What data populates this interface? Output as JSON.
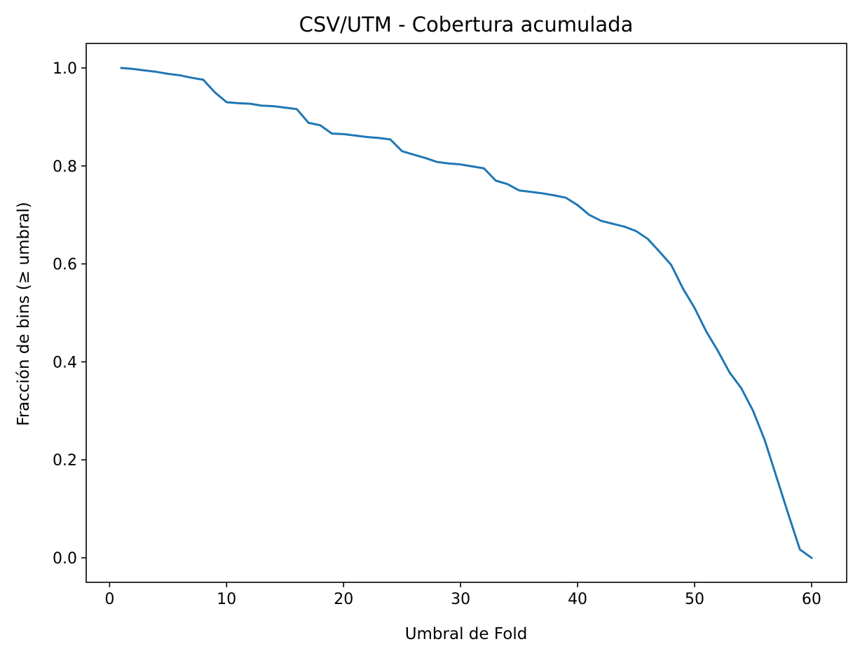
{
  "chart_data": {
    "type": "line",
    "title": "CSV/UTM - Cobertura acumulada",
    "xlabel": "Umbral de Fold",
    "ylabel": "Fracción de bins (≥ umbral)",
    "xlim": [
      -2,
      63
    ],
    "ylim": [
      -0.05,
      1.05
    ],
    "xticks": [
      0,
      10,
      20,
      30,
      40,
      50,
      60
    ],
    "xtick_labels": [
      "0",
      "10",
      "20",
      "30",
      "40",
      "50",
      "60"
    ],
    "yticks": [
      0.0,
      0.2,
      0.4,
      0.6,
      0.8,
      1.0
    ],
    "ytick_labels": [
      "0.0",
      "0.2",
      "0.4",
      "0.6",
      "0.8",
      "1.0"
    ],
    "grid": false,
    "series": [
      {
        "color": "#1f77b4",
        "x": [
          1,
          2,
          3,
          4,
          5,
          6,
          7,
          8,
          9,
          10,
          11,
          12,
          13,
          14,
          15,
          16,
          17,
          18,
          19,
          20,
          21,
          22,
          23,
          24,
          25,
          26,
          27,
          28,
          29,
          30,
          31,
          32,
          33,
          34,
          35,
          36,
          37,
          38,
          39,
          40,
          41,
          42,
          43,
          44,
          45,
          46,
          47,
          48,
          49,
          50,
          51,
          52,
          53,
          54,
          55,
          56,
          57,
          58,
          59,
          60
        ],
        "y": [
          1.0,
          0.998,
          0.995,
          0.992,
          0.988,
          0.985,
          0.98,
          0.976,
          0.95,
          0.93,
          0.928,
          0.927,
          0.923,
          0.922,
          0.919,
          0.916,
          0.888,
          0.883,
          0.866,
          0.865,
          0.862,
          0.859,
          0.857,
          0.854,
          0.83,
          0.823,
          0.816,
          0.808,
          0.805,
          0.803,
          0.799,
          0.795,
          0.77,
          0.763,
          0.75,
          0.747,
          0.744,
          0.74,
          0.735,
          0.72,
          0.7,
          0.688,
          0.682,
          0.676,
          0.667,
          0.651,
          0.625,
          0.598,
          0.55,
          0.51,
          0.462,
          0.422,
          0.378,
          0.346,
          0.3,
          0.24,
          0.165,
          0.09,
          0.017,
          0.0
        ]
      }
    ]
  }
}
